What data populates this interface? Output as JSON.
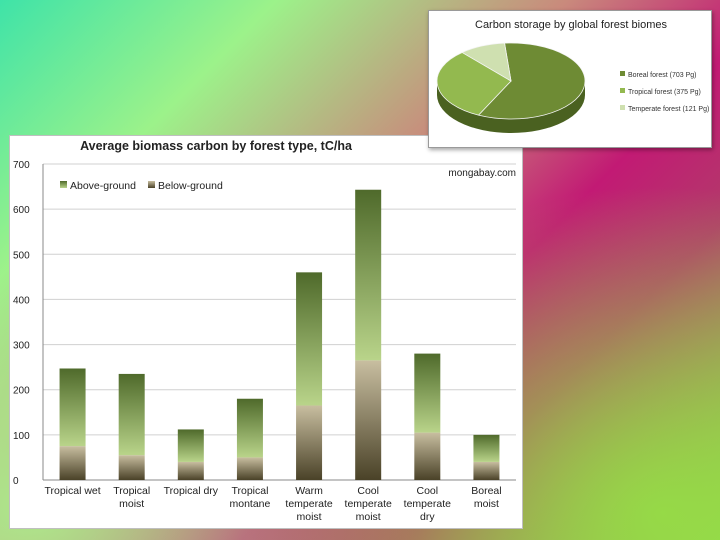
{
  "chart_data": [
    {
      "type": "bar",
      "title": "Average biomass carbon by forest type, tC/ha",
      "source_label": "mongabay.com",
      "categories": [
        [
          "Tropical wet"
        ],
        [
          "Tropical",
          "moist"
        ],
        [
          "Tropical dry"
        ],
        [
          "Tropical",
          "montane"
        ],
        [
          "Warm",
          "temperate",
          "moist"
        ],
        [
          "Cool",
          "temperate",
          "moist"
        ],
        [
          "Cool",
          "temperate",
          "dry"
        ],
        [
          "Boreal",
          "moist"
        ]
      ],
      "stacked": true,
      "series": [
        {
          "name": "Below-ground",
          "values": [
            75,
            55,
            40,
            50,
            165,
            265,
            105,
            40
          ]
        },
        {
          "name": "Above-ground",
          "values": [
            172,
            180,
            72,
            130,
            295,
            378,
            175,
            60
          ]
        }
      ],
      "ylim": [
        0,
        700
      ],
      "yticks": [
        0,
        100,
        200,
        300,
        400,
        500,
        600,
        700
      ],
      "grid": true,
      "legend": "top-left",
      "colors": {
        "above": "#4f6a2b",
        "above_light": "#b9d48a",
        "below": "#4a4228",
        "below_light": "#c8bea0"
      }
    },
    {
      "type": "pie",
      "title": "Carbon storage by global forest biomes",
      "slices": [
        {
          "label": "Boreal forest (703 Pg)",
          "value": 703,
          "color": "#6e8b34"
        },
        {
          "label": "Tropical forest (375 Pg)",
          "value": 375,
          "color": "#93b94f"
        },
        {
          "label": "Temperate forest (121 Pg)",
          "value": 121,
          "color": "#cfe0b0"
        }
      ],
      "legend": "right"
    }
  ]
}
